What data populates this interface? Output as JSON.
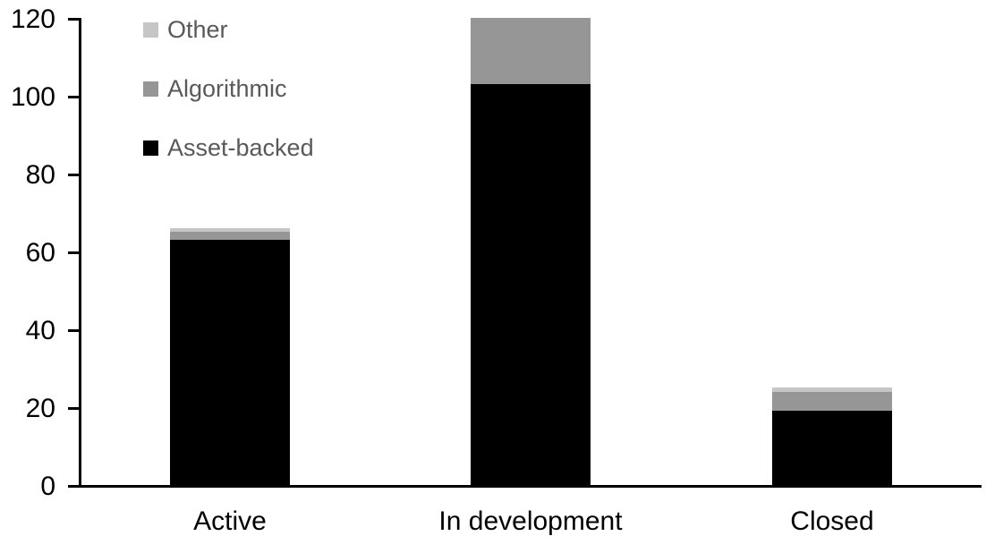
{
  "chart_data": {
    "type": "bar",
    "stacked": true,
    "title": "",
    "xlabel": "",
    "ylabel": "",
    "categories": [
      "Active",
      "In development",
      "Closed"
    ],
    "series": [
      {
        "name": "Asset-backed",
        "color": "#000000",
        "values": [
          63,
          103,
          19
        ]
      },
      {
        "name": "Algorithmic",
        "color": "#969696",
        "values": [
          2,
          17,
          5
        ]
      },
      {
        "name": "Other",
        "color": "#c6c6c6",
        "values": [
          1,
          0,
          1
        ]
      }
    ],
    "stack_totals": [
      66,
      120,
      25
    ],
    "ylim": [
      0,
      120
    ],
    "yticks": [
      0,
      20,
      40,
      60,
      80,
      100,
      120
    ],
    "grid": false,
    "legend_position": "top-left",
    "legend_order_top_to_bottom": [
      "Other",
      "Algorithmic",
      "Asset-backed"
    ]
  },
  "legend": {
    "text_color": "#595959"
  },
  "axis": {
    "color": "#000000"
  }
}
